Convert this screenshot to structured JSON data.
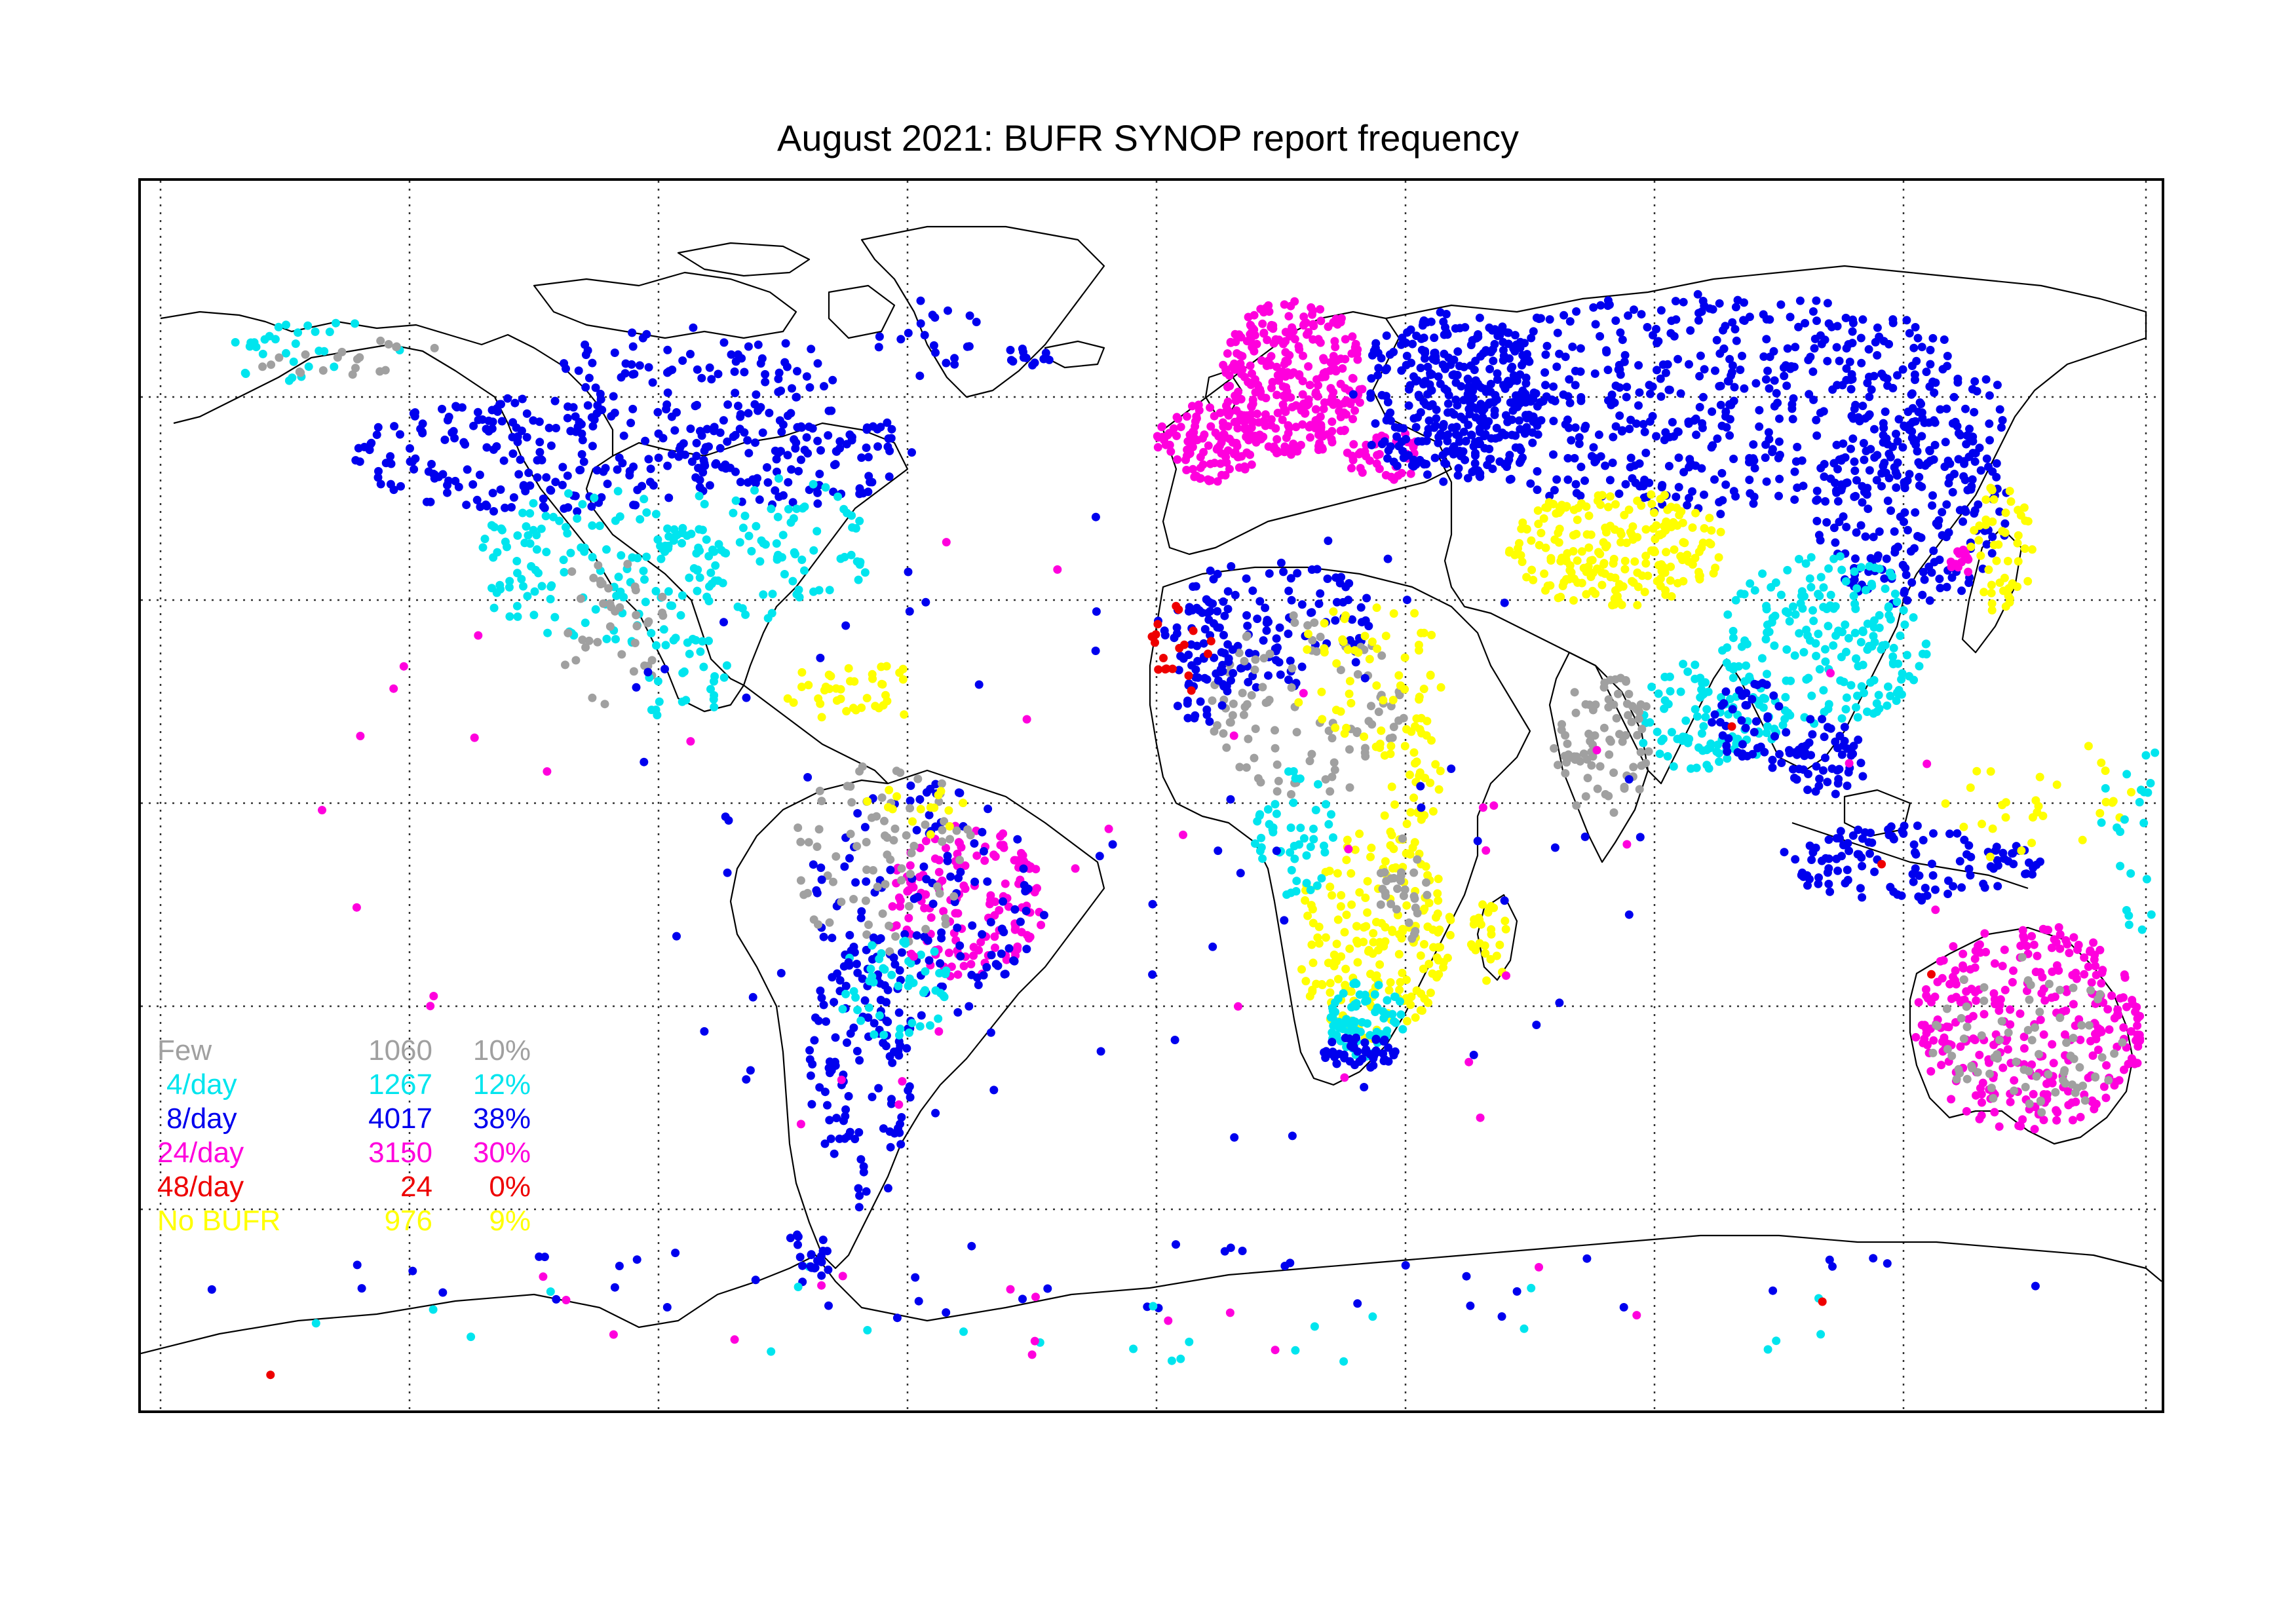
{
  "title": "August 2021: BUFR SYNOP report frequency",
  "categories": [
    {
      "key": "few",
      "label": "Few",
      "count": "1060",
      "percent": "10%",
      "color": "#a0a0a0"
    },
    {
      "key": "4day",
      "label": "4/day",
      "count": "1267",
      "percent": "12%",
      "color": "#00e5ee"
    },
    {
      "key": "8day",
      "label": "8/day",
      "count": "4017",
      "percent": "38%",
      "color": "#0000ee"
    },
    {
      "key": "24day",
      "label": "24/day",
      "count": "3150",
      "percent": "30%",
      "color": "#ff00dd"
    },
    {
      "key": "48day",
      "label": "48/day",
      "count": "24",
      "percent": "0%",
      "color": "#ee0000"
    },
    {
      "key": "nobufr",
      "label": "No BUFR",
      "count": "976",
      "percent": "9%",
      "color": "#ffff00"
    }
  ],
  "map": {
    "projection": "equirectangular",
    "lon_range": [
      -180,
      180
    ],
    "lat_range": [
      -90,
      90
    ],
    "gridlines": "dotted, every 45° longitude and 30° latitude",
    "coastline_color": "#000000",
    "frame_color": "#000000"
  }
}
